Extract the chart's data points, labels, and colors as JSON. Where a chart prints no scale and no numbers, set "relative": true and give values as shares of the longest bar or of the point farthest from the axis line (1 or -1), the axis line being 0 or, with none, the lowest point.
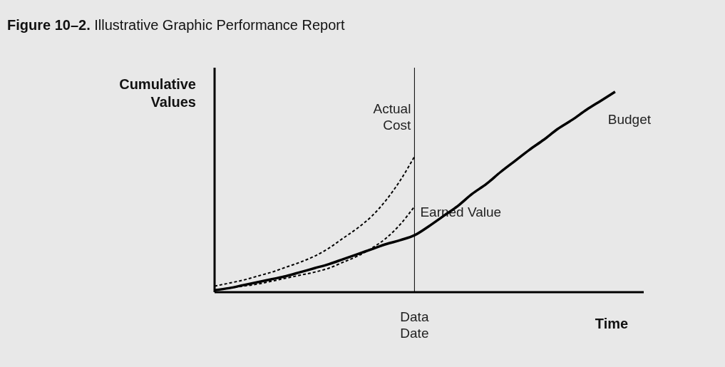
{
  "chart_data": {
    "type": "line",
    "title": "Figure 10–2. Illustrative Graphic Performance Report",
    "xlabel": "Time",
    "ylabel": "Cumulative Values",
    "relative": true,
    "grid": false,
    "legend": false,
    "marker": "none",
    "categories": [
      null,
      null,
      null,
      null,
      null,
      null,
      null,
      null,
      null,
      null,
      null,
      null,
      null,
      null,
      null,
      null,
      null,
      null,
      null,
      null,
      null,
      null,
      null,
      null,
      null,
      null,
      null,
      null,
      null
    ],
    "series": [
      {
        "name": "Budget",
        "color": "#000000",
        "line_style": "solid",
        "values": [
          0.01,
          0.02,
          0.035,
          0.05,
          0.065,
          0.08,
          0.1,
          0.12,
          0.14,
          0.165,
          0.19,
          0.215,
          0.24,
          0.26,
          0.285,
          0.33,
          0.38,
          0.43,
          0.49,
          0.54,
          0.6,
          0.655,
          0.71,
          0.76,
          0.815,
          0.86,
          0.91,
          0.955,
          1
        ]
      },
      {
        "name": "Actual Cost",
        "color": "#000000",
        "line_style": "dashed",
        "values": [
          0.03,
          0.045,
          0.06,
          0.08,
          0.1,
          0.125,
          0.15,
          0.18,
          0.22,
          0.27,
          0.32,
          0.38,
          0.46,
          0.56,
          0.68,
          null,
          null,
          null,
          null,
          null,
          null,
          null,
          null,
          null,
          null,
          null,
          null,
          null,
          null
        ]
      },
      {
        "name": "Earned Value",
        "color": "#000000",
        "line_style": "dashed",
        "values": [
          0.01,
          0.02,
          0.03,
          0.04,
          0.055,
          0.07,
          0.085,
          0.1,
          0.12,
          0.15,
          0.18,
          0.22,
          0.27,
          0.34,
          0.43,
          null,
          null,
          null,
          null,
          null,
          null,
          null,
          null,
          null,
          null,
          null,
          null,
          null,
          null
        ]
      }
    ],
    "annotations": [
      "Data Date"
    ]
  }
}
